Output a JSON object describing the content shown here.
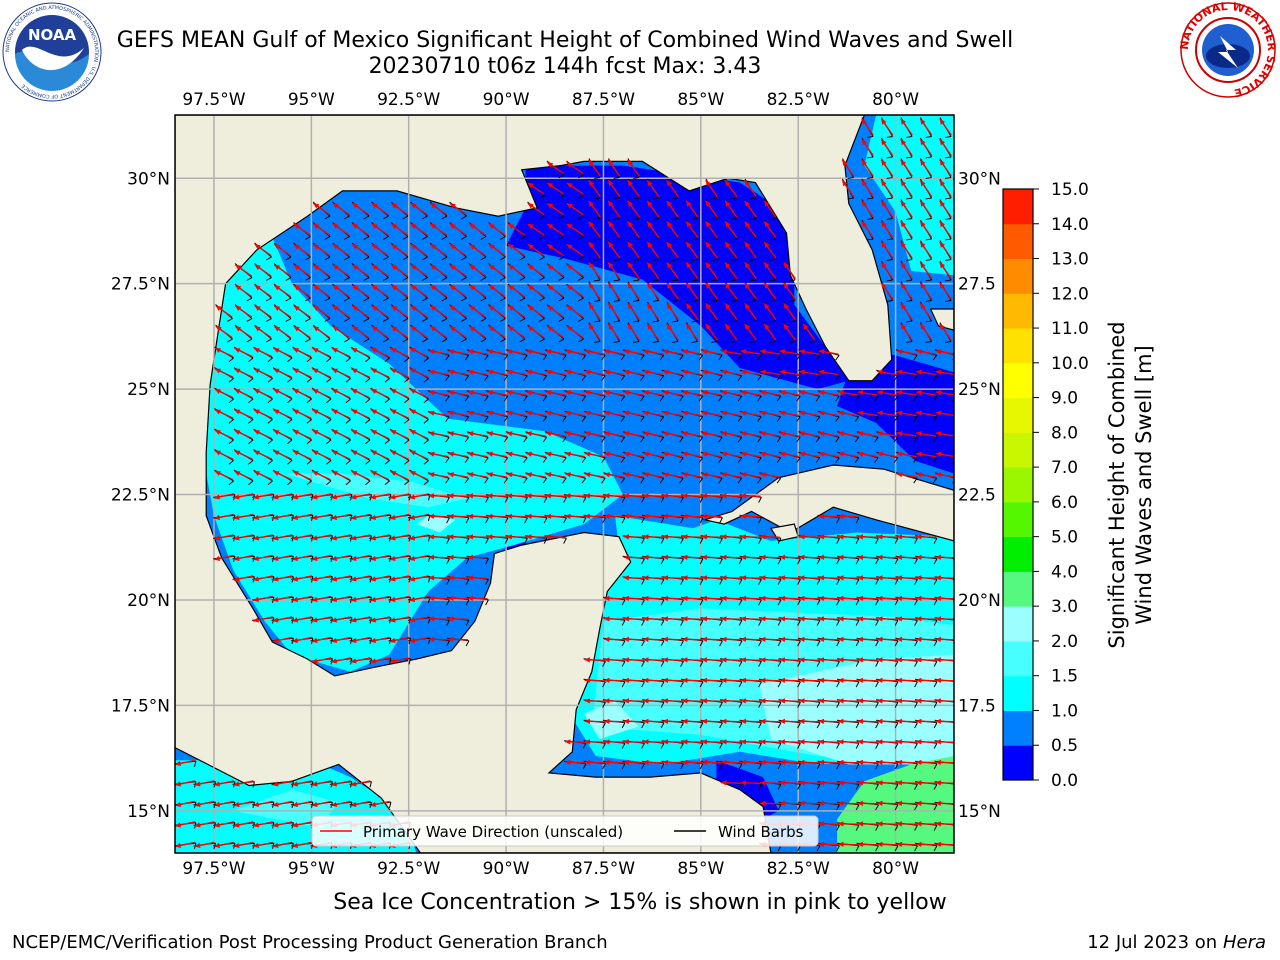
{
  "header": {
    "title_line1": "GEFS MEAN Gulf of Mexico Significant Height of Combined Wind Waves and Swell",
    "title_line2": "20230710 t06z 144h fcst   Max: 3.43"
  },
  "logos": {
    "noaa_text": "NOAA",
    "noaa_ring_text": "NATIONAL OCEANIC AND ATMOSPHERIC ADMINISTRATION · U.S. DEPARTMENT OF COMMERCE",
    "nws_ring_text": "NATIONAL WEATHER SERVICE"
  },
  "chart_data": {
    "type": "heatmap",
    "map_extent": {
      "lon": [
        -98.5,
        -78.5
      ],
      "lat": [
        14.0,
        31.5
      ]
    },
    "x_ticks": [
      -97.5,
      -95,
      -92.5,
      -90,
      -87.5,
      -85,
      -82.5,
      -80
    ],
    "x_tick_labels": [
      "97.5°W",
      "95°W",
      "92.5°W",
      "90°W",
      "87.5°W",
      "85°W",
      "82.5°W",
      "80°W"
    ],
    "y_ticks": [
      15,
      17.5,
      20,
      22.5,
      25,
      27.5,
      30
    ],
    "y_tick_labels_left": [
      "15°N",
      "17.5°N",
      "20°N",
      "22.5°N",
      "25°N",
      "27.5°N",
      "30°N"
    ],
    "y_tick_labels_right": [
      "15°N",
      "17.5",
      "20°N",
      "22.5",
      "25°N",
      "27.5",
      "30°N"
    ],
    "grid": true,
    "max_value": 3.43,
    "colorbar": {
      "label_line1": "Significant Height of Combined",
      "label_line2": "Wind Waves and Swell [m]",
      "levels": [
        0.0,
        0.5,
        1.0,
        1.5,
        2.0,
        3.0,
        4.0,
        5.0,
        6.0,
        7.0,
        8.0,
        9.0,
        10.0,
        11.0,
        12.0,
        13.0,
        14.0,
        15.0
      ],
      "level_labels": [
        "0.0",
        "0.5",
        "1.0",
        "1.5",
        "2.0",
        "3.0",
        "4.0",
        "5.0",
        "6.0",
        "7.0",
        "8.0",
        "9.0",
        "10.0",
        "11.0",
        "12.0",
        "13.0",
        "14.0",
        "15.0"
      ],
      "colors": [
        "#0000ff",
        "#0080ff",
        "#00ffff",
        "#48ffff",
        "#9bffff",
        "#55f97f",
        "#00ee00",
        "#55f700",
        "#9bf700",
        "#c8f700",
        "#e6f700",
        "#ffff00",
        "#ffe100",
        "#ffb900",
        "#ff8c00",
        "#ff5a00",
        "#ff1e00"
      ]
    },
    "regions": [
      {
        "level_index": 2,
        "description": "western Gulf 1.0-1.5 m"
      },
      {
        "level_index": 3,
        "description": "Yucatan Channel / Caribbean 1.5-2.0 m"
      },
      {
        "level_index": 4,
        "description": "Caribbean 2.0-3.0 m"
      },
      {
        "level_index": 5,
        "description": "southeast Caribbean 3.0-4.0 m"
      }
    ],
    "legend": {
      "placement": "lower-center",
      "entries": [
        {
          "label": "Primary Wave Direction (unscaled)",
          "color": "#ff0000"
        },
        {
          "label": "Wind Barbs",
          "color": "#000000"
        }
      ]
    }
  },
  "footer": {
    "note": "Sea Ice Concentration > 15% is shown in pink to yellow",
    "credit_left": "NCEP/EMC/Verification Post Processing Product Generation Branch",
    "credit_right_prefix": "12 Jul 2023 on ",
    "credit_right_host": "Hera"
  },
  "colors": {
    "land": "#efeedc",
    "grid": "#b0b0b0",
    "coast": "#000000",
    "arrow": "#ff0000",
    "barb": "#000000"
  }
}
